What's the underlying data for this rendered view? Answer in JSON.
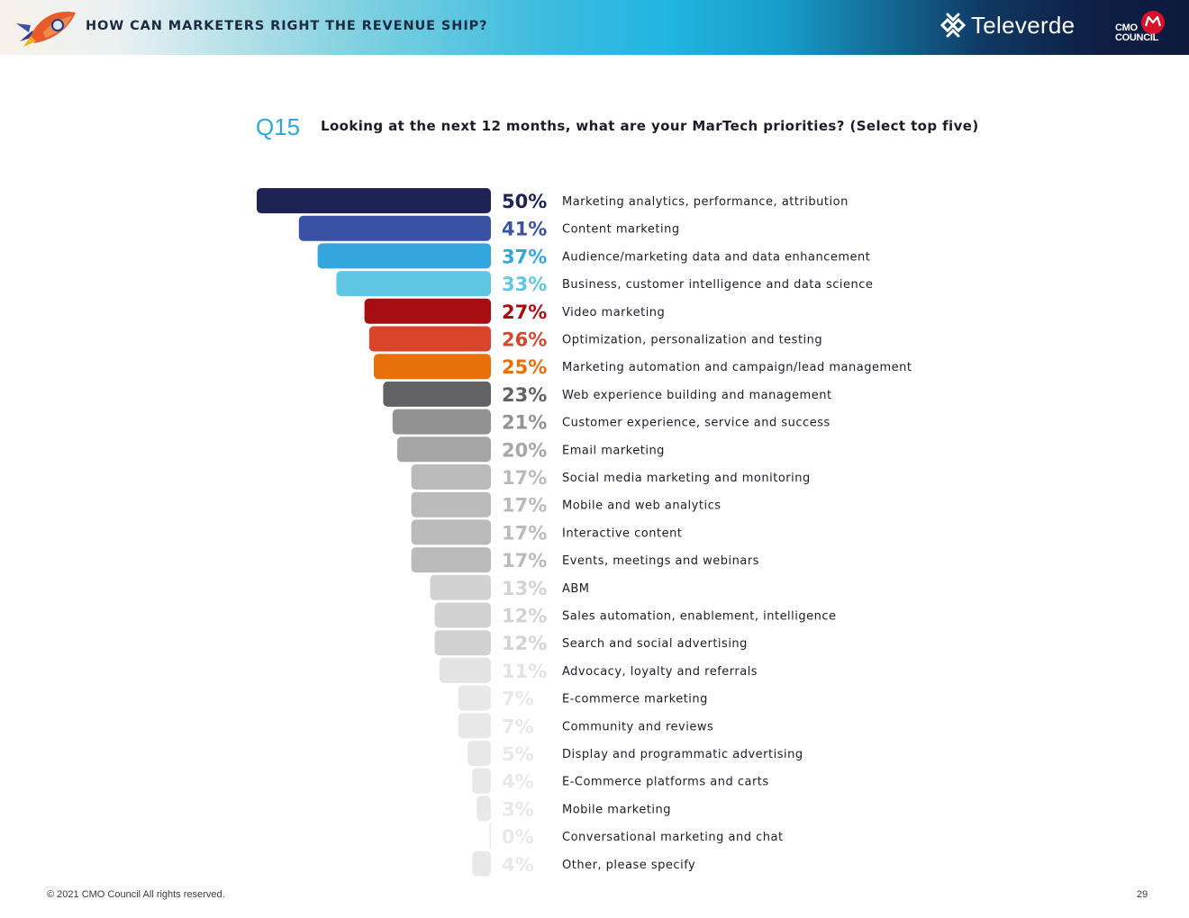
{
  "header": {
    "title": "HOW CAN MARKETERS RIGHT THE REVENUE SHIP?",
    "brand_name": "Televerde",
    "partner_line1": "CMO",
    "partner_line2": "COUNCIL"
  },
  "question": {
    "number": "Q15",
    "text": "Looking at the next 12 months, what are your MarTech priorities? (Select top five)"
  },
  "chart_data": {
    "type": "bar",
    "orientation": "horizontal",
    "title": "Looking at the next 12 months, what are your MarTech priorities? (Select top five)",
    "xlim": [
      0,
      50
    ],
    "unit": "%",
    "categories": [
      "Marketing analytics, performance, attribution",
      "Content marketing",
      "Audience/marketing data and data enhancement",
      "Business, customer intelligence and data science",
      "Video marketing",
      "Optimization, personalization and testing",
      "Marketing automation and campaign/lead management",
      "Web experience building and management",
      "Customer experience, service and success",
      "Email marketing",
      "Social media marketing and monitoring",
      "Mobile and web analytics",
      "Interactive content",
      "Events, meetings and webinars",
      "ABM",
      "Sales automation, enablement, intelligence",
      "Search and social advertising",
      "Advocacy, loyalty and referrals",
      "E-commerce marketing",
      "Community and reviews",
      "Display and programmatic advertising",
      "E-Commerce platforms and carts",
      "Mobile marketing",
      "Conversational marketing and chat",
      "Other, please specify"
    ],
    "values": [
      50,
      41,
      37,
      33,
      27,
      26,
      25,
      23,
      21,
      20,
      17,
      17,
      17,
      17,
      13,
      12,
      12,
      11,
      7,
      7,
      5,
      4,
      3,
      0,
      4
    ],
    "value_labels": [
      "50%",
      "41%",
      "37%",
      "33%",
      "27%",
      "26%",
      "25%",
      "23%",
      "21%",
      "20%",
      "17%",
      "17%",
      "17%",
      "17%",
      "13%",
      "12%",
      "12%",
      "11%",
      "7%",
      "7%",
      "5%",
      "4%",
      "3%",
      "0%",
      "4%"
    ],
    "colors": [
      "#1d2355",
      "#3a52a3",
      "#33a6de",
      "#5fc6e4",
      "#a70e12",
      "#d8452a",
      "#e86f0a",
      "#626164",
      "#929292",
      "#a6a6a6",
      "#bababa",
      "#bababa",
      "#bababa",
      "#bababa",
      "#d2d2d2",
      "#d2d2d2",
      "#d2d2d2",
      "#e3e3e3",
      "#e8e8e8",
      "#e8e8e8",
      "#e8e8e8",
      "#e8e8e8",
      "#e8e8e8",
      "#e8e8e8",
      "#e8e8e8"
    ]
  },
  "footer": {
    "copyright": "© 2021 CMO Council  All rights reserved.",
    "page_number": "29"
  }
}
